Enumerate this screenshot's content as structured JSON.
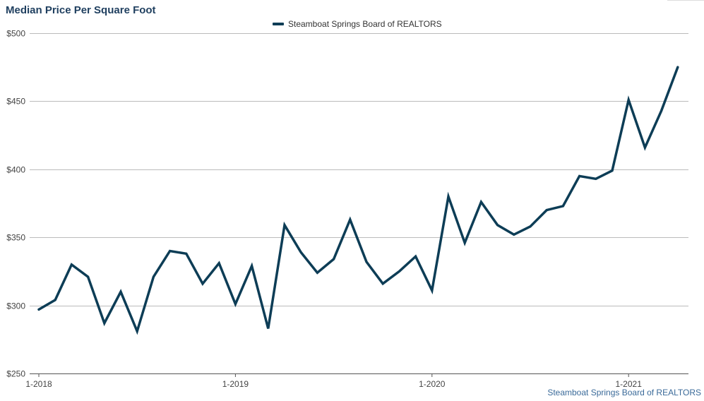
{
  "chart_data": {
    "type": "line",
    "title": "Median Price Per Square Foot",
    "ylim": [
      250,
      500
    ],
    "y_ticks": [
      "$250",
      "$300",
      "$350",
      "$400",
      "$450",
      "$500"
    ],
    "y_tick_values": [
      250,
      300,
      350,
      400,
      450,
      500
    ],
    "x_ticks": [
      "1-2018",
      "1-2019",
      "1-2020",
      "1-2021"
    ],
    "grid": true,
    "legend_position": "top-center",
    "series": [
      {
        "name": "Steamboat Springs Board of REALTORS",
        "color": "#0d3d56",
        "x": [
          "1-2018",
          "2-2018",
          "3-2018",
          "4-2018",
          "5-2018",
          "6-2018",
          "7-2018",
          "8-2018",
          "9-2018",
          "10-2018",
          "11-2018",
          "12-2018",
          "1-2019",
          "2-2019",
          "3-2019",
          "4-2019",
          "5-2019",
          "6-2019",
          "7-2019",
          "8-2019",
          "9-2019",
          "10-2019",
          "11-2019",
          "12-2019",
          "1-2020",
          "2-2020",
          "3-2020",
          "4-2020",
          "5-2020",
          "6-2020",
          "7-2020",
          "8-2020",
          "9-2020",
          "10-2020",
          "11-2020",
          "12-2020",
          "1-2021",
          "2-2021",
          "3-2021",
          "4-2021"
        ],
        "values": [
          297,
          304,
          330,
          321,
          287,
          310,
          281,
          321,
          340,
          338,
          316,
          331,
          301,
          329,
          283,
          359,
          339,
          324,
          334,
          363,
          332,
          316,
          325,
          336,
          311,
          380,
          346,
          376,
          359,
          352,
          358,
          370,
          373,
          395,
          393,
          399,
          451,
          416,
          443,
          475
        ]
      }
    ]
  },
  "source_label": "Steamboat Springs Board of REALTORS"
}
